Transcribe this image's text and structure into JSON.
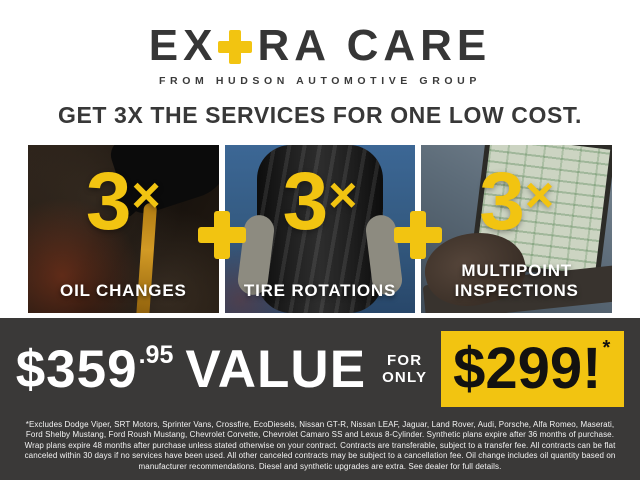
{
  "colors": {
    "accent_yellow": "#f2c411",
    "band_charcoal": "#3a3938",
    "ink": "#363636"
  },
  "logo": {
    "part1": "EX",
    "part2": "RA CARE",
    "tagline": "FROM HUDSON AUTOMOTIVE GROUP"
  },
  "headline": "GET 3X THE SERVICES FOR ONE LOW COST.",
  "services": [
    {
      "multiplier": "3",
      "times": "×",
      "label": "OIL CHANGES",
      "photo": "oil-pour-photo"
    },
    {
      "multiplier": "3",
      "times": "×",
      "label": "TIRE ROTATIONS",
      "photo": "tire-hold-photo"
    },
    {
      "multiplier": "3",
      "times": "×",
      "label": "MULTIPOINT INSPECTIONS",
      "photo": "laptop-inspection-photo"
    }
  ],
  "offer": {
    "value_price": "$359",
    "value_cents": ".95",
    "value_label": "VALUE",
    "for_word": "FOR",
    "only_word": "ONLY",
    "sale_price": "$299!",
    "footnote_marker": "*"
  },
  "disclaimer": "*Excludes Dodge Viper, SRT Motors, Sprinter Vans, Crossfire, EcoDiesels, Nissan GT-R, Nissan LEAF, Jaguar, Land Rover, Audi, Porsche, Alfa Romeo, Maserati, Ford Shelby Mustang, Ford Roush Mustang, Chevrolet Corvette, Chevrolet Camaro SS and Lexus 8-Cylinder. Synthetic plans expire after 36 months of purchase. Wrap plans expire 48 months after purchase unless stated otherwise on your contract. Contracts are transferable, subject to a transfer fee. All contracts can be flat canceled within 30 days if no services have been used. All other canceled contracts may be subject to a cancellation fee. Oil change includes oil quantity based on manufacturer recommendations. Diesel and synthetic upgrades are extra. See dealer for full details."
}
